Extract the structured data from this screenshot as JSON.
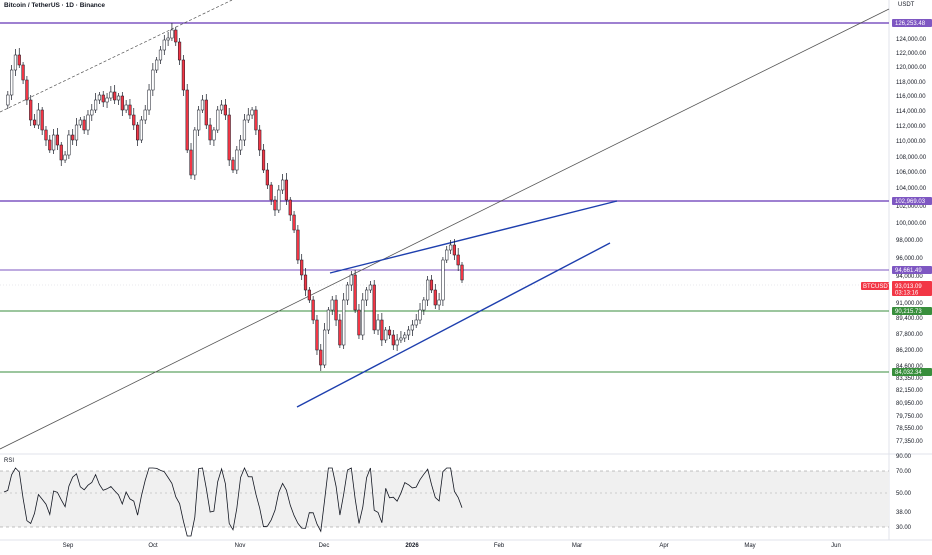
{
  "header": {
    "title": "Bitcoin / TetherUS · 1D · Binance",
    "currency": "USDT"
  },
  "rsi": {
    "label": "RSI",
    "levels": [
      "90.00",
      "70.00",
      "50.00",
      "38.00",
      "30.00"
    ]
  },
  "price_axis": {
    "ticks": [
      "124,000.00",
      "122,000.00",
      "120,000.00",
      "118,000.00",
      "116,000.00",
      "114,000.00",
      "112,000.00",
      "110,000.00",
      "108,000.00",
      "106,000.00",
      "104,000.00",
      "102,000.00",
      "100,000.00",
      "98,000.00",
      "96,000.00",
      "94,000.00",
      "91,000.00",
      "89,400.00",
      "87,800.00",
      "86,200.00",
      "84,600.00",
      "83,350.00",
      "82,150.00",
      "80,950.00",
      "79,750.00",
      "78,550.00",
      "77,350.00"
    ]
  },
  "time_axis": {
    "labels": [
      "Sep",
      "Oct",
      "Nov",
      "Dec",
      "2026",
      "Feb",
      "Mar",
      "Apr",
      "May",
      "Jun"
    ]
  },
  "levels": [
    {
      "label": "126,253.48",
      "color": "#7e57c2"
    },
    {
      "label": "102,969.03",
      "color": "#7e57c2"
    },
    {
      "label": "94,661.49",
      "color": "#7e57c2"
    },
    {
      "label": "90,215.73",
      "color": "#388e3c"
    },
    {
      "label": "84,032.34",
      "color": "#388e3c"
    }
  ],
  "last_price": {
    "symbol": "BTCUSDT",
    "price": "93,013.09",
    "countdown": "03:13:16",
    "color": "#f23645"
  },
  "colors": {
    "up": "#ffffff",
    "down": "#f23645",
    "wick": "#131722",
    "trend_blue": "#1e3fae",
    "trend_gray": "#555555",
    "rsi_band": "#f0f0f0"
  }
}
